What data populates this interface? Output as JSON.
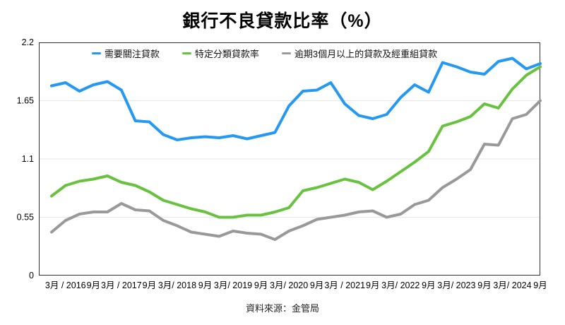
{
  "title": "銀行不良貸款比率（%）",
  "source": "資料來源：金管局",
  "chart_data": {
    "type": "line",
    "title": "銀行不良貸款比率（%）",
    "xlabel": "",
    "ylabel": "",
    "ylim": [
      0,
      2.2
    ],
    "y_ticks": [
      {
        "value": 2.2,
        "label": "2.2"
      },
      {
        "value": 1.65,
        "label": "1.65"
      },
      {
        "value": 1.1,
        "label": "1.1"
      },
      {
        "value": 0.55,
        "label": "0.55"
      },
      {
        "value": 0,
        "label": "0"
      }
    ],
    "grid": "horizontal",
    "legend_position": "top-center-inside",
    "x_labels": [
      "3月 / 2016",
      "9月",
      "3月 / 2017",
      "9月",
      "3月/ 2018",
      "9月",
      "3月/ 2019",
      "9月",
      "3月/ 2020",
      "9月",
      "3月 / 2021",
      "9月",
      "3月/ 2022",
      "9月",
      "3月/ 2023",
      "9月",
      "3月/ 2024",
      "9月"
    ],
    "x_tick_offset": 1,
    "x_tick_step": 2,
    "point_count": 36,
    "series": [
      {
        "id": "special-mention-loans",
        "name": "需要關注貸款",
        "color": "#2598f2",
        "values": [
          1.79,
          1.82,
          1.74,
          1.8,
          1.83,
          1.75,
          1.46,
          1.45,
          1.33,
          1.28,
          1.3,
          1.31,
          1.3,
          1.32,
          1.29,
          1.32,
          1.35,
          1.6,
          1.74,
          1.75,
          1.82,
          1.62,
          1.51,
          1.48,
          1.52,
          1.68,
          1.8,
          1.73,
          2.01,
          1.97,
          1.92,
          1.9,
          2.02,
          2.05,
          1.95,
          2.0
        ]
      },
      {
        "id": "classified-loans",
        "name": "特定分類貸款率",
        "color": "#68c23f",
        "values": [
          0.75,
          0.85,
          0.89,
          0.91,
          0.94,
          0.88,
          0.85,
          0.79,
          0.71,
          0.67,
          0.63,
          0.6,
          0.55,
          0.55,
          0.57,
          0.57,
          0.6,
          0.64,
          0.8,
          0.83,
          0.87,
          0.91,
          0.88,
          0.81,
          0.89,
          0.98,
          1.07,
          1.17,
          1.41,
          1.45,
          1.5,
          1.62,
          1.58,
          1.76,
          1.89,
          1.97
        ]
      },
      {
        "id": "overdue-3m-restructured-loans",
        "name": "逾期3個月以上的貸款及經重組貸款",
        "color": "#999999",
        "values": [
          0.41,
          0.52,
          0.58,
          0.6,
          0.6,
          0.68,
          0.62,
          0.61,
          0.52,
          0.47,
          0.41,
          0.39,
          0.37,
          0.42,
          0.4,
          0.39,
          0.34,
          0.42,
          0.47,
          0.53,
          0.55,
          0.57,
          0.6,
          0.61,
          0.55,
          0.58,
          0.67,
          0.71,
          0.83,
          0.91,
          1.0,
          1.24,
          1.23,
          1.48,
          1.52,
          1.65
        ]
      }
    ]
  }
}
